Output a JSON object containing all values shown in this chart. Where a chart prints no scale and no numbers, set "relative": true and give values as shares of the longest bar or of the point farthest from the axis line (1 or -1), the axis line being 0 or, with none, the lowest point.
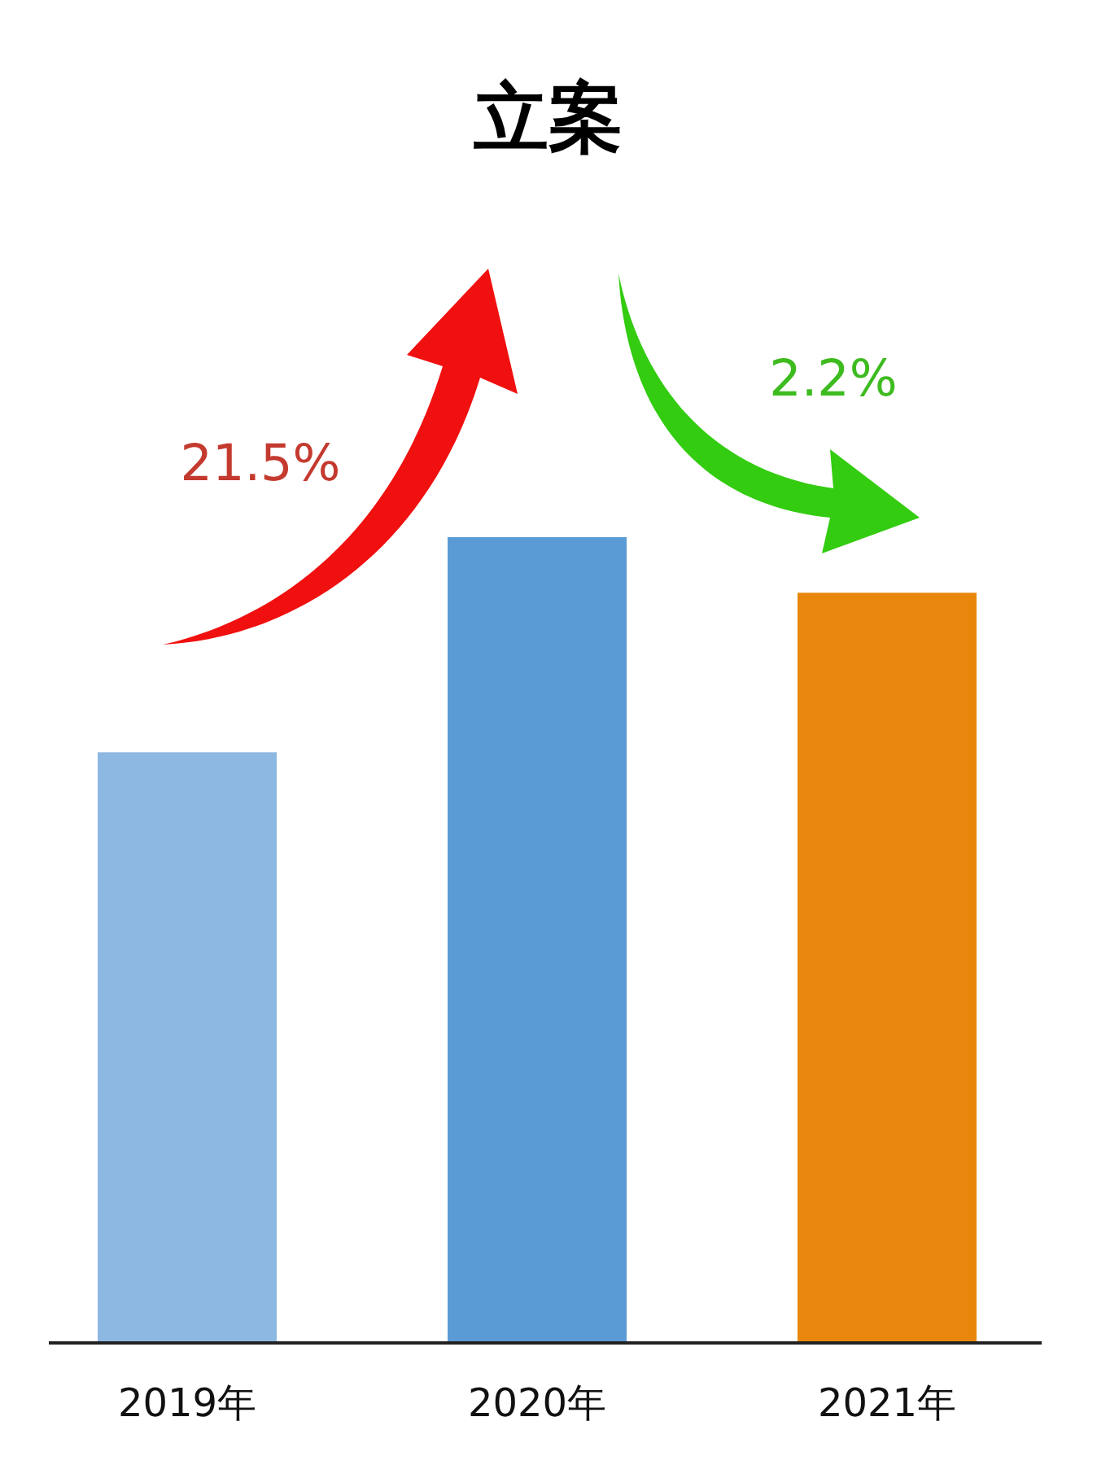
{
  "chart_data": {
    "type": "bar",
    "title": "立案",
    "categories": [
      "2019年",
      "2020年",
      "2021年"
    ],
    "values": [
      0.733,
      1,
      0.931
    ],
    "colors": [
      "#8db8e1",
      "#5b9bd5",
      "#e8870b"
    ],
    "relative": true,
    "annotations": [
      "21.5%",
      "2.2%"
    ]
  }
}
